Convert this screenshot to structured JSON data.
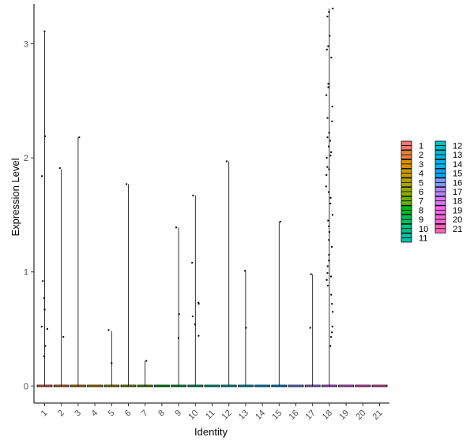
{
  "chart_data": {
    "type": "violin",
    "xlabel": "Identity",
    "ylabel": "Expression Level",
    "categories": [
      "1",
      "2",
      "3",
      "4",
      "5",
      "6",
      "7",
      "8",
      "9",
      "10",
      "11",
      "12",
      "13",
      "14",
      "15",
      "16",
      "17",
      "18",
      "19",
      "20",
      "21"
    ],
    "ylim": [
      -0.15,
      3.35
    ],
    "yticks": [
      0,
      1,
      2,
      3
    ],
    "violins": [
      {
        "identity": "1",
        "max": 3.1,
        "color": "#F8766D"
      },
      {
        "identity": "2",
        "max": 1.9,
        "color": "#EC8239"
      },
      {
        "identity": "3",
        "max": 2.18,
        "color": "#DB8E00"
      },
      {
        "identity": "4",
        "max": 0.0,
        "color": "#C79800"
      },
      {
        "identity": "5",
        "max": 0.48,
        "color": "#AEA200"
      },
      {
        "identity": "6",
        "max": 1.77,
        "color": "#8FAA00"
      },
      {
        "identity": "7",
        "max": 0.22,
        "color": "#64B200"
      },
      {
        "identity": "8",
        "max": 0.0,
        "color": "#00B81B"
      },
      {
        "identity": "9",
        "max": 1.39,
        "color": "#00BD5C"
      },
      {
        "identity": "10",
        "max": 1.67,
        "color": "#00C085"
      },
      {
        "identity": "11",
        "max": 0.0,
        "color": "#00C1A7"
      },
      {
        "identity": "12",
        "max": 1.97,
        "color": "#00BFC4"
      },
      {
        "identity": "13",
        "max": 1.01,
        "color": "#00BADE"
      },
      {
        "identity": "14",
        "max": 0.0,
        "color": "#00B2F3"
      },
      {
        "identity": "15",
        "max": 1.44,
        "color": "#00A6FF"
      },
      {
        "identity": "16",
        "max": 0.0,
        "color": "#7C96FF"
      },
      {
        "identity": "17",
        "max": 0.98,
        "color": "#B385FF"
      },
      {
        "identity": "18",
        "max": 3.31,
        "color": "#D874FD"
      },
      {
        "identity": "19",
        "max": 0.0,
        "color": "#EF67EB"
      },
      {
        "identity": "20",
        "max": 0.0,
        "color": "#FD61D3"
      },
      {
        "identity": "21",
        "max": 0.0,
        "color": "#FF63B6"
      }
    ],
    "points": [
      {
        "identity": "1",
        "y": 3.11
      },
      {
        "identity": "1",
        "y": 2.19
      },
      {
        "identity": "1",
        "y": 1.84
      },
      {
        "identity": "1",
        "y": 0.92
      },
      {
        "identity": "1",
        "y": 0.77
      },
      {
        "identity": "1",
        "y": 0.67
      },
      {
        "identity": "1",
        "y": 0.52
      },
      {
        "identity": "1",
        "y": 0.5
      },
      {
        "identity": "1",
        "y": 0.35
      },
      {
        "identity": "1",
        "y": 0.26
      },
      {
        "identity": "2",
        "y": 1.91
      },
      {
        "identity": "2",
        "y": 0.43
      },
      {
        "identity": "3",
        "y": 2.18
      },
      {
        "identity": "5",
        "y": 0.49
      },
      {
        "identity": "5",
        "y": 0.2
      },
      {
        "identity": "6",
        "y": 1.77
      },
      {
        "identity": "7",
        "y": 0.22
      },
      {
        "identity": "9",
        "y": 1.39
      },
      {
        "identity": "9",
        "y": 0.63
      },
      {
        "identity": "9",
        "y": 0.42
      },
      {
        "identity": "10",
        "y": 1.67
      },
      {
        "identity": "10",
        "y": 1.08
      },
      {
        "identity": "10",
        "y": 0.73
      },
      {
        "identity": "10",
        "y": 0.72
      },
      {
        "identity": "10",
        "y": 0.61
      },
      {
        "identity": "10",
        "y": 0.54
      },
      {
        "identity": "10",
        "y": 0.44
      },
      {
        "identity": "12",
        "y": 1.97
      },
      {
        "identity": "13",
        "y": 1.01
      },
      {
        "identity": "13",
        "y": 0.51
      },
      {
        "identity": "15",
        "y": 1.44
      },
      {
        "identity": "17",
        "y": 0.98
      },
      {
        "identity": "17",
        "y": 0.51
      },
      {
        "identity": "18",
        "y": 3.31
      },
      {
        "identity": "18",
        "y": 3.28
      },
      {
        "identity": "18",
        "y": 3.24
      },
      {
        "identity": "18",
        "y": 3.07
      },
      {
        "identity": "18",
        "y": 2.98
      },
      {
        "identity": "18",
        "y": 2.95
      },
      {
        "identity": "18",
        "y": 2.88
      },
      {
        "identity": "18",
        "y": 2.65
      },
      {
        "identity": "18",
        "y": 2.62
      },
      {
        "identity": "18",
        "y": 2.55
      },
      {
        "identity": "18",
        "y": 2.45
      },
      {
        "identity": "18",
        "y": 2.35
      },
      {
        "identity": "18",
        "y": 2.32
      },
      {
        "identity": "18",
        "y": 2.22
      },
      {
        "identity": "18",
        "y": 2.18
      },
      {
        "identity": "18",
        "y": 2.15
      },
      {
        "identity": "18",
        "y": 2.1
      },
      {
        "identity": "18",
        "y": 2.05
      },
      {
        "identity": "18",
        "y": 2.02
      },
      {
        "identity": "18",
        "y": 2.0
      },
      {
        "identity": "18",
        "y": 1.92
      },
      {
        "identity": "18",
        "y": 1.9
      },
      {
        "identity": "18",
        "y": 1.85
      },
      {
        "identity": "18",
        "y": 1.75
      },
      {
        "identity": "18",
        "y": 1.7
      },
      {
        "identity": "18",
        "y": 1.65
      },
      {
        "identity": "18",
        "y": 1.6
      },
      {
        "identity": "18",
        "y": 1.5
      },
      {
        "identity": "18",
        "y": 1.45
      },
      {
        "identity": "18",
        "y": 1.4
      },
      {
        "identity": "18",
        "y": 1.35
      },
      {
        "identity": "18",
        "y": 1.28
      },
      {
        "identity": "18",
        "y": 1.22
      },
      {
        "identity": "18",
        "y": 1.15
      },
      {
        "identity": "18",
        "y": 1.1
      },
      {
        "identity": "18",
        "y": 1.05
      },
      {
        "identity": "18",
        "y": 0.99
      },
      {
        "identity": "18",
        "y": 0.96
      },
      {
        "identity": "18",
        "y": 0.93
      },
      {
        "identity": "18",
        "y": 0.88
      },
      {
        "identity": "18",
        "y": 0.8
      },
      {
        "identity": "18",
        "y": 0.72
      },
      {
        "identity": "18",
        "y": 0.65
      },
      {
        "identity": "18",
        "y": 0.52
      },
      {
        "identity": "18",
        "y": 0.47
      },
      {
        "identity": "18",
        "y": 0.43
      },
      {
        "identity": "18",
        "y": 0.35
      }
    ],
    "legend": {
      "position": "right",
      "columns": 2,
      "entries": [
        {
          "label": "1",
          "color": "#F8766D"
        },
        {
          "label": "2",
          "color": "#EC8239"
        },
        {
          "label": "3",
          "color": "#DB8E00"
        },
        {
          "label": "4",
          "color": "#C79800"
        },
        {
          "label": "5",
          "color": "#AEA200"
        },
        {
          "label": "6",
          "color": "#8FAA00"
        },
        {
          "label": "7",
          "color": "#64B200"
        },
        {
          "label": "8",
          "color": "#00B81B"
        },
        {
          "label": "9",
          "color": "#00BD5C"
        },
        {
          "label": "10",
          "color": "#00C085"
        },
        {
          "label": "11",
          "color": "#00C1A7"
        },
        {
          "label": "12",
          "color": "#00BFC4"
        },
        {
          "label": "13",
          "color": "#00BADE"
        },
        {
          "label": "14",
          "color": "#00B2F3"
        },
        {
          "label": "15",
          "color": "#00A6FF"
        },
        {
          "label": "16",
          "color": "#7C96FF"
        },
        {
          "label": "17",
          "color": "#B385FF"
        },
        {
          "label": "18",
          "color": "#D874FD"
        },
        {
          "label": "19",
          "color": "#EF67EB"
        },
        {
          "label": "20",
          "color": "#FD61D3"
        },
        {
          "label": "21",
          "color": "#FF63B6"
        }
      ]
    },
    "grid": false
  }
}
